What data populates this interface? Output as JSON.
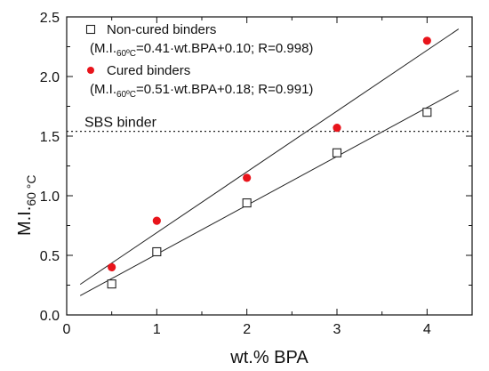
{
  "chart_data": {
    "type": "scatter",
    "xlabel": "wt.% BPA",
    "ylabel_main": "M.I.",
    "ylabel_sub": "60 °C",
    "xlim": [
      0,
      4.5
    ],
    "ylim": [
      0,
      2.5
    ],
    "x_ticks": [
      0,
      1,
      2,
      3,
      4
    ],
    "x_tick_labels": [
      "0",
      "1",
      "2",
      "3",
      "4"
    ],
    "y_ticks": [
      0,
      0.5,
      1.0,
      1.5,
      2.0,
      2.5
    ],
    "y_tick_labels": [
      "0.0",
      "0.5",
      "1.0",
      "1.5",
      "2.0",
      "2.5"
    ],
    "series": [
      {
        "name": "Non-cured binders",
        "marker": "open-square",
        "color": "#222222",
        "points": [
          {
            "x": 0.5,
            "y": 0.26
          },
          {
            "x": 1,
            "y": 0.53
          },
          {
            "x": 2,
            "y": 0.94
          },
          {
            "x": 3,
            "y": 1.36
          },
          {
            "x": 4,
            "y": 1.7
          }
        ],
        "fit": {
          "slope": 0.41,
          "intercept": 0.1,
          "x_range": [
            0.15,
            4.35
          ],
          "label_prefix": "(M.I.",
          "label_sub": "60ºC",
          "label_suffix": "=0.41·wt.BPA+0.10; R=0.998)"
        }
      },
      {
        "name": "Cured binders",
        "marker": "filled-circle",
        "color": "#e8141b",
        "points": [
          {
            "x": 0.5,
            "y": 0.4
          },
          {
            "x": 1,
            "y": 0.79
          },
          {
            "x": 2,
            "y": 1.15
          },
          {
            "x": 3,
            "y": 1.57
          },
          {
            "x": 4,
            "y": 2.3
          }
        ],
        "fit": {
          "slope": 0.51,
          "intercept": 0.18,
          "x_range": [
            0.15,
            4.35
          ],
          "label_prefix": "(M.I.",
          "label_sub": "60ºC",
          "label_suffix": "=0.51·wt.BPA+0.18; R=0.991)"
        }
      }
    ],
    "reference_line": {
      "label": "SBS binder",
      "y": 1.54,
      "style": "dotted"
    },
    "legend_placement": "top-left",
    "grid": false
  }
}
